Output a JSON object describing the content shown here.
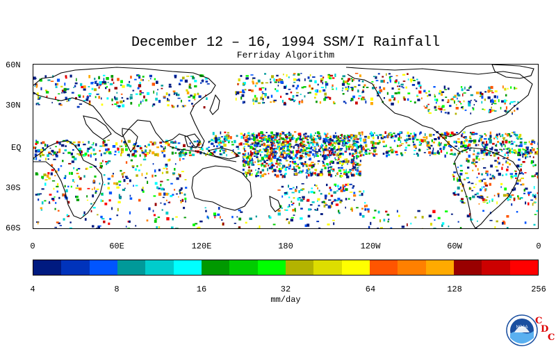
{
  "title": "December 12 – 16, 1994 SSM/I Rainfall",
  "subtitle": "Ferriday Algorithm",
  "lat_labels": [
    "60N",
    "30N",
    "EQ",
    "30S",
    "60S"
  ],
  "lon_labels": [
    "0",
    "60E",
    "120E",
    "180",
    "120W",
    "60W",
    "0"
  ],
  "colorbar": {
    "colors": [
      "#001a80",
      "#0033bb",
      "#0055ff",
      "#009999",
      "#00cccc",
      "#00ffff",
      "#009900",
      "#00cc00",
      "#00ff00",
      "#b3b300",
      "#dddd00",
      "#ffff00",
      "#ff5500",
      "#ff8000",
      "#ffaa00",
      "#990000",
      "#cc0000",
      "#ff0000"
    ],
    "tick_labels": [
      "4",
      "8",
      "16",
      "32",
      "64",
      "128",
      "256"
    ],
    "unit": "mm/day"
  },
  "logo": {
    "text": "NOAA",
    "cdc": [
      "C",
      "D",
      "C"
    ]
  },
  "chart_data": {
    "type": "heatmap",
    "title": "December 12 – 16, 1994 SSM/I Rainfall",
    "subtitle": "Ferriday Algorithm",
    "x_ticks": [
      "0",
      "60E",
      "120E",
      "180",
      "120W",
      "60W",
      "0"
    ],
    "y_ticks": [
      "60N",
      "30N",
      "EQ",
      "30S",
      "60S"
    ],
    "xlim": [
      0,
      360
    ],
    "ylim": [
      -60,
      60
    ],
    "colorbar_ticks": [
      4,
      8,
      16,
      32,
      64,
      128,
      256
    ],
    "colorbar_scale": "log2",
    "unit": "mm/day"
  }
}
